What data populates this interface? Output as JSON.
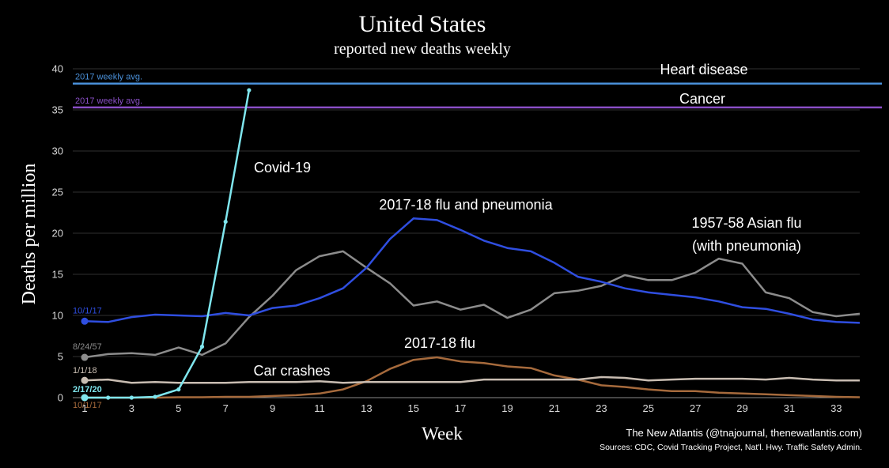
{
  "chart_data": {
    "type": "line",
    "title": "United States",
    "subtitle": "reported new deaths weekly",
    "xlabel": "Week",
    "ylabel": "Deaths per million",
    "xlim": [
      1,
      34
    ],
    "ylim": [
      0,
      40
    ],
    "x_ticks": [
      "1",
      "3",
      "5",
      "7",
      "9",
      "11",
      "13",
      "15",
      "17",
      "19",
      "21",
      "23",
      "25",
      "27",
      "29",
      "31",
      "33"
    ],
    "y_ticks": [
      "0",
      "5",
      "10",
      "15",
      "20",
      "25",
      "30",
      "35",
      "40"
    ],
    "grid": "horizontal",
    "reference_lines": [
      {
        "label": "Heart disease",
        "note": "2017 weekly avg.",
        "value": 38.2,
        "color": "#4a90d9"
      },
      {
        "label": "Cancer",
        "note": "2017 weekly avg.",
        "value": 35.3,
        "color": "#8a4fc7"
      }
    ],
    "series": [
      {
        "name": "1957-58 Asian flu (with pneumonia)",
        "start_label": "8/24/57",
        "color": "#8c8c8c",
        "x": [
          1,
          2,
          3,
          4,
          5,
          6,
          7,
          8,
          9,
          10,
          11,
          12,
          13,
          14,
          15,
          16,
          17,
          18,
          19,
          20,
          21,
          22,
          23,
          24,
          25,
          26,
          27,
          28,
          29,
          30,
          31,
          32,
          33,
          34
        ],
        "values": [
          4.9,
          5.3,
          5.4,
          5.2,
          6.1,
          5.2,
          6.6,
          9.8,
          12.4,
          15.5,
          17.2,
          17.8,
          15.8,
          13.9,
          11.2,
          11.7,
          10.7,
          11.3,
          9.7,
          10.7,
          12.7,
          13.0,
          13.6,
          14.9,
          14.3,
          14.3,
          15.2,
          16.9,
          16.3,
          12.8,
          12.1,
          10.4,
          9.9,
          10.2
        ]
      },
      {
        "name": "2017-18 flu and pneumonia",
        "start_label": "10/1/17",
        "color": "#2f4ee0",
        "x": [
          1,
          2,
          3,
          4,
          5,
          6,
          7,
          8,
          9,
          10,
          11,
          12,
          13,
          14,
          15,
          16,
          17,
          18,
          19,
          20,
          21,
          22,
          23,
          24,
          25,
          26,
          27,
          28,
          29,
          30,
          31,
          32,
          33,
          34
        ],
        "values": [
          9.3,
          9.2,
          9.8,
          10.1,
          10.0,
          9.9,
          10.3,
          10.0,
          10.9,
          11.2,
          12.1,
          13.3,
          15.8,
          19.3,
          21.8,
          21.6,
          20.4,
          19.1,
          18.2,
          17.8,
          16.4,
          14.7,
          14.1,
          13.3,
          12.8,
          12.5,
          12.2,
          11.7,
          11.0,
          10.8,
          10.2,
          9.5,
          9.2,
          9.1
        ]
      },
      {
        "name": "2017-18 flu",
        "start_label": "10/1/17",
        "color": "#a66a3c",
        "x": [
          1,
          2,
          3,
          4,
          5,
          6,
          7,
          8,
          9,
          10,
          11,
          12,
          13,
          14,
          15,
          16,
          17,
          18,
          19,
          20,
          21,
          22,
          23,
          24,
          25,
          26,
          27,
          28,
          29,
          30,
          31,
          32,
          33,
          34
        ],
        "values": [
          0.0,
          0.0,
          0.0,
          0.0,
          0.05,
          0.05,
          0.1,
          0.1,
          0.2,
          0.3,
          0.5,
          1.0,
          2.0,
          3.5,
          4.6,
          4.9,
          4.4,
          4.2,
          3.8,
          3.6,
          2.7,
          2.2,
          1.5,
          1.3,
          1.0,
          0.8,
          0.8,
          0.6,
          0.5,
          0.4,
          0.3,
          0.2,
          0.1,
          0.05
        ]
      },
      {
        "name": "Car crashes",
        "start_label": "1/1/18",
        "color": "#c9bdb2",
        "x": [
          1,
          2,
          3,
          4,
          5,
          6,
          7,
          8,
          9,
          10,
          11,
          12,
          13,
          14,
          15,
          16,
          17,
          18,
          19,
          20,
          21,
          22,
          23,
          24,
          25,
          26,
          27,
          28,
          29,
          30,
          31,
          32,
          33,
          34
        ],
        "values": [
          2.1,
          2.2,
          1.8,
          1.9,
          1.8,
          1.8,
          1.8,
          1.9,
          1.9,
          1.9,
          2.0,
          1.8,
          1.9,
          1.9,
          1.9,
          1.9,
          1.9,
          2.2,
          2.2,
          2.2,
          2.2,
          2.2,
          2.5,
          2.4,
          2.1,
          2.2,
          2.3,
          2.3,
          2.3,
          2.2,
          2.4,
          2.2,
          2.1,
          2.1
        ]
      },
      {
        "name": "Covid-19",
        "start_label": "2/17/20",
        "color": "#7fe6ee",
        "x": [
          1,
          2,
          3,
          4,
          5,
          6,
          7,
          8
        ],
        "values": [
          0.0,
          0.0,
          0.0,
          0.1,
          1.0,
          6.2,
          21.4,
          37.4
        ]
      }
    ],
    "annotations": [
      "Heart disease",
      "Cancer",
      "Covid-19",
      "2017-18 flu and pneumonia",
      "1957-58 Asian flu",
      "(with pneumonia)",
      "2017-18 flu",
      "Car crashes"
    ],
    "credit": "The New Atlantis (@tnajournal, thenewatlantis.com)",
    "sources": "Sources: CDC, Covid Tracking Project, Nat'l. Hwy. Traffic Safety Admin."
  }
}
